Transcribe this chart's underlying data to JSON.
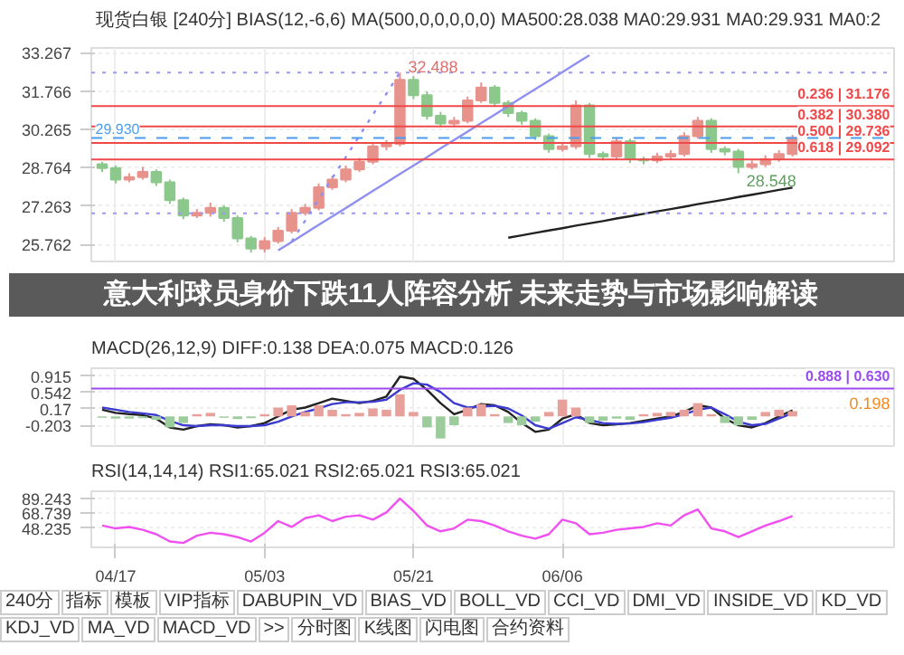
{
  "chart_data": [
    {
      "type": "candlestick",
      "title": "意大利球员身价下跌11人阵容分析 未来走势与市场影响解读",
      "subtitle": "现货白银 [240分] BIAS(12,-6,6) MA(500,0,0,0,0,0) MA500:28.038 MA0:29.931 MA0:29.931 MA0:2",
      "categories": [
        null,
        null,
        null,
        null,
        null,
        null,
        null,
        null,
        null,
        null,
        null,
        null,
        null,
        null,
        null,
        null,
        null,
        null,
        null,
        null,
        null,
        null,
        null,
        null,
        null,
        null,
        null,
        null,
        null,
        null,
        null,
        null,
        null,
        null,
        null,
        null,
        null,
        null,
        null,
        null,
        null,
        null,
        null,
        null,
        null,
        null,
        null,
        null,
        null,
        null,
        null,
        null
      ],
      "ohlc": [
        [
          28.9,
          29.0,
          28.6,
          28.75
        ],
        [
          28.75,
          28.85,
          28.15,
          28.3
        ],
        [
          28.3,
          28.55,
          28.2,
          28.4
        ],
        [
          28.4,
          28.8,
          28.3,
          28.6
        ],
        [
          28.6,
          28.7,
          28.05,
          28.2
        ],
        [
          28.2,
          28.3,
          27.35,
          27.5
        ],
        [
          27.5,
          27.6,
          26.75,
          26.9
        ],
        [
          26.9,
          27.15,
          26.8,
          27.0
        ],
        [
          27.0,
          27.4,
          26.85,
          27.2
        ],
        [
          27.2,
          27.3,
          26.65,
          26.8
        ],
        [
          26.8,
          26.9,
          25.85,
          26.0
        ],
        [
          26.0,
          26.1,
          25.45,
          25.6
        ],
        [
          25.6,
          26.05,
          25.45,
          25.9
        ],
        [
          25.9,
          26.45,
          25.8,
          26.3
        ],
        [
          26.3,
          27.15,
          26.2,
          27.0
        ],
        [
          27.0,
          27.35,
          26.9,
          27.2
        ],
        [
          27.2,
          28.15,
          27.1,
          28.0
        ],
        [
          28.0,
          28.45,
          27.9,
          28.3
        ],
        [
          28.3,
          28.85,
          28.2,
          28.7
        ],
        [
          28.7,
          29.15,
          28.6,
          29.0
        ],
        [
          29.0,
          29.75,
          28.9,
          29.6
        ],
        [
          29.6,
          29.85,
          29.45,
          29.7
        ],
        [
          29.7,
          32.488,
          29.6,
          32.2
        ],
        [
          32.2,
          32.35,
          31.45,
          31.6
        ],
        [
          31.6,
          31.75,
          30.65,
          30.8
        ],
        [
          30.8,
          30.95,
          30.35,
          30.5
        ],
        [
          30.5,
          30.75,
          30.35,
          30.6
        ],
        [
          30.6,
          31.55,
          30.5,
          31.4
        ],
        [
          31.4,
          32.1,
          31.3,
          31.9
        ],
        [
          31.9,
          32.0,
          31.15,
          31.3
        ],
        [
          31.3,
          31.4,
          30.75,
          30.9
        ],
        [
          30.9,
          31.0,
          30.45,
          30.6
        ],
        [
          30.6,
          30.7,
          29.85,
          30.0
        ],
        [
          30.0,
          30.1,
          29.35,
          29.5
        ],
        [
          29.5,
          29.75,
          29.4,
          29.6
        ],
        [
          29.6,
          31.4,
          29.5,
          31.2
        ],
        [
          31.2,
          31.3,
          29.15,
          29.3
        ],
        [
          29.3,
          29.4,
          29.05,
          29.2
        ],
        [
          29.2,
          29.95,
          29.1,
          29.8
        ],
        [
          29.8,
          29.9,
          28.95,
          29.1
        ],
        [
          29.1,
          29.2,
          28.9,
          29.05
        ],
        [
          29.05,
          29.35,
          28.95,
          29.2
        ],
        [
          29.2,
          29.45,
          29.1,
          29.3
        ],
        [
          29.3,
          30.15,
          29.2,
          30.0
        ],
        [
          30.0,
          30.75,
          29.9,
          30.6
        ],
        [
          30.6,
          30.7,
          29.35,
          29.5
        ],
        [
          29.5,
          29.6,
          29.25,
          29.4
        ],
        [
          29.4,
          29.5,
          28.548,
          28.8
        ],
        [
          28.8,
          29.05,
          28.7,
          28.9
        ],
        [
          28.9,
          29.25,
          28.8,
          29.1
        ],
        [
          29.1,
          29.45,
          29.0,
          29.3
        ],
        [
          29.3,
          30.05,
          29.2,
          29.93
        ]
      ],
      "colors": [
        "#8cc88c",
        "#8cc88c",
        "#e8928c",
        "#e8928c",
        "#8cc88c",
        "#8cc88c",
        "#8cc88c",
        "#e8928c",
        "#e8928c",
        "#8cc88c",
        "#8cc88c",
        "#8cc88c",
        "#e8928c",
        "#e8928c",
        "#e8928c",
        "#e8928c",
        "#e8928c",
        "#e8928c",
        "#e8928c",
        "#e8928c",
        "#e8928c",
        "#e8928c",
        "#e8928c",
        "#8cc88c",
        "#8cc88c",
        "#8cc88c",
        "#e8928c",
        "#e8928c",
        "#e8928c",
        "#8cc88c",
        "#8cc88c",
        "#8cc88c",
        "#8cc88c",
        "#8cc88c",
        "#e8928c",
        "#e8928c",
        "#8cc88c",
        "#8cc88c",
        "#e8928c",
        "#8cc88c",
        "#8cc88c",
        "#e8928c",
        "#e8928c",
        "#e8928c",
        "#e8928c",
        "#8cc88c",
        "#8cc88c",
        "#8cc88c",
        "#e8928c",
        "#e8928c",
        "#e8928c",
        "#e8928c"
      ],
      "series": [
        {
          "type": "line",
          "values": [
            null,
            null,
            null,
            null,
            null,
            null,
            null,
            null,
            null,
            null,
            null,
            null,
            null,
            25.53,
            25.86,
            26.2,
            26.53,
            26.86,
            27.19,
            27.52,
            27.86,
            28.19,
            28.52,
            28.85,
            29.18,
            29.52,
            29.85,
            30.18,
            30.51,
            30.84,
            31.18,
            31.51,
            31.84,
            32.17,
            32.5,
            32.84,
            33.17,
            null,
            null,
            null,
            null,
            null,
            null,
            null,
            null,
            null,
            null,
            null,
            null,
            null,
            null,
            null
          ],
          "color": "#8f8ff0",
          "line_style": "solid"
        },
        {
          "type": "line",
          "values": [
            null,
            null,
            null,
            null,
            null,
            null,
            null,
            null,
            null,
            null,
            null,
            null,
            null,
            null,
            25.88,
            26.7,
            27.53,
            28.36,
            29.18,
            30.01,
            30.84,
            31.66,
            32.49,
            null,
            null,
            null,
            null,
            null,
            null,
            null,
            null,
            null,
            null,
            null,
            null,
            null,
            null,
            null,
            null,
            null,
            null,
            null,
            null,
            null,
            null,
            null,
            null,
            null,
            null,
            null,
            null,
            null
          ],
          "color": "#8f8ff0",
          "line_style": "dotted"
        },
        {
          "type": "line",
          "values": [
            null,
            null,
            null,
            null,
            null,
            null,
            null,
            null,
            null,
            null,
            null,
            null,
            null,
            null,
            null,
            null,
            null,
            null,
            null,
            null,
            null,
            null,
            null,
            null,
            null,
            null,
            null,
            null,
            null,
            null,
            26.03,
            26.12,
            26.22,
            26.31,
            26.4,
            26.5,
            26.59,
            26.68,
            26.78,
            26.87,
            26.96,
            27.06,
            27.15,
            27.24,
            27.34,
            27.43,
            27.52,
            27.62,
            27.71,
            27.8,
            27.9,
            27.99
          ],
          "color": "#222222",
          "line_style": "solid"
        }
      ],
      "ylim": [
        25.1,
        33.45
      ],
      "yticks": [
        33.267,
        31.766,
        30.265,
        28.764,
        27.263,
        25.762
      ],
      "ref_lines": [
        {
          "axis": "y",
          "value": 31.176,
          "label": "0.236 | 31.176",
          "color": "#f04848",
          "line_style": "solid"
        },
        {
          "axis": "y",
          "value": 30.38,
          "label": "0.382 | 30.380",
          "color": "#f04848",
          "line_style": "solid"
        },
        {
          "axis": "y",
          "value": 29.736,
          "label": "0.500 | 29.736",
          "color": "#f04848",
          "line_style": "solid"
        },
        {
          "axis": "y",
          "value": 29.092,
          "label": "0.618 | 29.092",
          "color": "#f04848",
          "line_style": "solid"
        },
        {
          "axis": "y",
          "value": 29.93,
          "label": "29.930",
          "color": "#4a9cf0",
          "line_style": "dashed"
        },
        {
          "axis": "y",
          "value": 32.488,
          "label": null,
          "color": "#9a9af0",
          "line_style": "dotted"
        },
        {
          "axis": "y",
          "value": 26.984,
          "label": null,
          "color": "#9a9af0",
          "line_style": "dotted"
        }
      ],
      "annotations": [
        "32.488",
        "28.548"
      ],
      "grid": true,
      "tick_labels": "y"
    },
    {
      "type": "bar",
      "title": "MACD(26,12,9)  DIFF:0.138  DEA:0.075  MACD:0.126",
      "categories": [
        null,
        null,
        null,
        null,
        null,
        null,
        null,
        null,
        null,
        null,
        null,
        null,
        null,
        null,
        null,
        null,
        null,
        null,
        null,
        null,
        null,
        null,
        null,
        null,
        null,
        null,
        null,
        null,
        null,
        null,
        null,
        null,
        null,
        null,
        null,
        null,
        null,
        null,
        null,
        null,
        null,
        null,
        null,
        null,
        null,
        null,
        null,
        null,
        null,
        null,
        null,
        null
      ],
      "series": [
        {
          "type": "bar",
          "values": [
            -0.03,
            -0.05,
            -0.05,
            -0.04,
            -0.08,
            -0.25,
            -0.15,
            0.05,
            0.08,
            -0.03,
            -0.06,
            -0.04,
            0.05,
            0.2,
            0.25,
            0.1,
            0.25,
            0.15,
            0.05,
            0.08,
            0.18,
            0.15,
            0.5,
            0.1,
            -0.25,
            -0.5,
            -0.2,
            0.2,
            0.28,
            0.05,
            -0.15,
            -0.2,
            -0.12,
            0.1,
            0.38,
            0.2,
            -0.15,
            -0.1,
            -0.05,
            -0.08,
            0.05,
            0.08,
            0.1,
            0.15,
            0.3,
            0.05,
            -0.15,
            -0.2,
            -0.08,
            0.1,
            0.15,
            0.12
          ],
          "colors": [
            "#9ccc9c",
            "#9ccc9c",
            "#9ccc9c",
            "#9ccc9c",
            "#9ccc9c",
            "#9ccc9c",
            "#9ccc9c",
            "#e8a09a",
            "#e8a09a",
            "#9ccc9c",
            "#9ccc9c",
            "#9ccc9c",
            "#e8a09a",
            "#e8a09a",
            "#e8a09a",
            "#e8a09a",
            "#e8a09a",
            "#e8a09a",
            "#e8a09a",
            "#e8a09a",
            "#e8a09a",
            "#e8a09a",
            "#e8a09a",
            "#e8a09a",
            "#9ccc9c",
            "#9ccc9c",
            "#9ccc9c",
            "#e8a09a",
            "#e8a09a",
            "#e8a09a",
            "#9ccc9c",
            "#9ccc9c",
            "#9ccc9c",
            "#e8a09a",
            "#e8a09a",
            "#e8a09a",
            "#9ccc9c",
            "#9ccc9c",
            "#9ccc9c",
            "#9ccc9c",
            "#e8a09a",
            "#e8a09a",
            "#e8a09a",
            "#e8a09a",
            "#e8a09a",
            "#e8a09a",
            "#9ccc9c",
            "#9ccc9c",
            "#9ccc9c",
            "#e8a09a",
            "#e8a09a",
            "#e8a09a"
          ]
        },
        {
          "type": "line",
          "color": "#222222",
          "values": [
            0.15,
            0.08,
            0.05,
            0.03,
            -0.05,
            -0.25,
            -0.3,
            -0.22,
            -0.18,
            -0.2,
            -0.25,
            -0.22,
            -0.15,
            0.0,
            0.15,
            0.2,
            0.3,
            0.4,
            0.35,
            0.3,
            0.35,
            0.45,
            0.9,
            0.85,
            0.6,
            0.3,
            0.05,
            0.15,
            0.28,
            0.25,
            0.1,
            -0.15,
            -0.35,
            -0.3,
            -0.05,
            0.05,
            -0.15,
            -0.2,
            -0.18,
            -0.15,
            -0.1,
            -0.05,
            0.0,
            0.1,
            0.25,
            0.2,
            -0.05,
            -0.2,
            -0.25,
            -0.15,
            0.0,
            0.138
          ]
        },
        {
          "type": "line",
          "color": "#3b3bd0",
          "values": [
            0.2,
            0.15,
            0.1,
            0.07,
            0.03,
            -0.1,
            -0.2,
            -0.22,
            -0.2,
            -0.2,
            -0.22,
            -0.22,
            -0.2,
            -0.12,
            0.0,
            0.1,
            0.18,
            0.28,
            0.32,
            0.32,
            0.33,
            0.38,
            0.6,
            0.75,
            0.72,
            0.55,
            0.3,
            0.2,
            0.22,
            0.24,
            0.18,
            0.02,
            -0.2,
            -0.28,
            -0.15,
            -0.02,
            -0.08,
            -0.15,
            -0.17,
            -0.16,
            -0.13,
            -0.08,
            -0.03,
            0.05,
            0.15,
            0.2,
            0.05,
            -0.12,
            -0.2,
            -0.17,
            -0.05,
            0.075
          ]
        }
      ],
      "ylim": [
        -0.67,
        1.09
      ],
      "yticks": [
        0.915,
        0.542,
        0.17,
        -0.203
      ],
      "ref_lines": [
        {
          "axis": "y",
          "value": 0.63,
          "label": "0.888 | 0.630",
          "color": "#9a4cf0",
          "line_style": "solid"
        }
      ],
      "annotations": [
        "0.198"
      ],
      "grid": true,
      "tick_labels": "y"
    },
    {
      "type": "line",
      "title": "RSI(14,14,14)  RSI1:65.021  RSI2:65.021  RSI3:65.021",
      "categories": [
        null,
        "04/17",
        null,
        null,
        null,
        null,
        null,
        null,
        null,
        null,
        null,
        null,
        "05/03",
        null,
        null,
        null,
        null,
        null,
        null,
        null,
        null,
        null,
        null,
        "05/21",
        null,
        null,
        null,
        null,
        null,
        null,
        null,
        null,
        null,
        null,
        "06/06",
        null,
        null,
        null,
        null,
        null,
        null,
        null,
        null,
        null,
        null,
        null,
        null,
        null,
        null,
        null,
        null,
        null
      ],
      "series": [
        {
          "color": "#f050f0",
          "values": [
            52,
            48,
            50,
            46,
            40,
            30,
            28,
            38,
            42,
            40,
            36,
            30,
            42,
            58,
            50,
            62,
            66,
            58,
            64,
            66,
            60,
            70,
            89,
            72,
            52,
            44,
            48,
            60,
            58,
            52,
            44,
            38,
            34,
            40,
            60,
            55,
            40,
            42,
            46,
            48,
            50,
            55,
            52,
            66,
            74,
            48,
            44,
            36,
            44,
            52,
            58,
            65.021
          ]
        }
      ],
      "ylim": [
        22,
        99
      ],
      "yticks": [
        89.243,
        68.739,
        48.235
      ],
      "annotations": [
        "240分",
        "指标",
        "模板",
        "VIP指标",
        "DABUPIN_VD",
        "BIAS_VD",
        "BOLL_VD",
        "CCI_VD",
        "DMI_VD",
        "INSIDE_VD",
        "KD_VD",
        "KDJ_VD",
        "MA_VD",
        "MACD_VD",
        ">>",
        "分时图",
        "K线图",
        "闪电图",
        "合约资料"
      ],
      "grid": true
    }
  ]
}
